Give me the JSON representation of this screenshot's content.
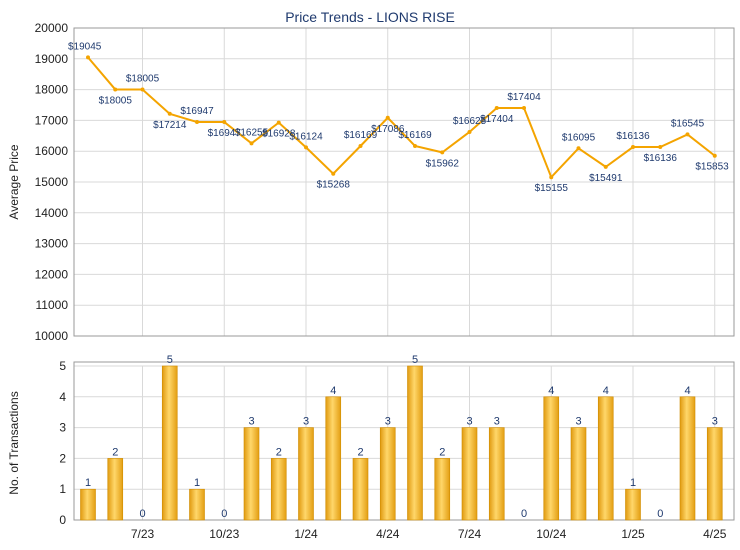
{
  "chart_data": [
    {
      "type": "line",
      "title": "Price Trends - LIONS RISE",
      "ylabel": "Average Price",
      "ylim": [
        10000,
        20000
      ],
      "yticks": [
        "10000",
        "11000",
        "12000",
        "13000",
        "14000",
        "15000",
        "16000",
        "17000",
        "18000",
        "19000",
        "20000"
      ],
      "color": "#f4a400",
      "points": [
        {
          "x": 0,
          "y": 19045,
          "label": "$19045"
        },
        {
          "x": 1,
          "y": 18005,
          "label": "$18005"
        },
        {
          "x": 2,
          "y": 18005,
          "label": "$18005"
        },
        {
          "x": 3,
          "y": 17214,
          "label": "$17214"
        },
        {
          "x": 4,
          "y": 16947,
          "label": "$16947"
        },
        {
          "x": 5,
          "y": 16947,
          "label": "$16947"
        },
        {
          "x": 6,
          "y": 16255,
          "label": "$16255"
        },
        {
          "x": 7,
          "y": 16928,
          "label": "$16928"
        },
        {
          "x": 8,
          "y": 16124,
          "label": "$16124"
        },
        {
          "x": 9,
          "y": 15268,
          "label": "$15268"
        },
        {
          "x": 10,
          "y": 16169,
          "label": "$16169"
        },
        {
          "x": 11,
          "y": 17086,
          "label": "$17086"
        },
        {
          "x": 12,
          "y": 16169,
          "label": "$16169"
        },
        {
          "x": 13,
          "y": 15962,
          "label": "$15962"
        },
        {
          "x": 14,
          "y": 16625,
          "label": "$16625"
        },
        {
          "x": 15,
          "y": 17404,
          "label": "$17404"
        },
        {
          "x": 16,
          "y": 17404,
          "label": "$17404"
        },
        {
          "x": 17,
          "y": 15155,
          "label": "$15155"
        },
        {
          "x": 18,
          "y": 16095,
          "label": "$16095"
        },
        {
          "x": 19,
          "y": 15491,
          "label": "$15491"
        },
        {
          "x": 20,
          "y": 16136,
          "label": "$16136"
        },
        {
          "x": 21,
          "y": 16136,
          "label": "$16136"
        },
        {
          "x": 22,
          "y": 16545,
          "label": "$16545"
        },
        {
          "x": 23,
          "y": 15853,
          "label": "$15853"
        }
      ]
    },
    {
      "type": "bar",
      "ylabel": "No. of Transactions",
      "ylim": [
        0,
        5
      ],
      "yticks": [
        "0",
        "1",
        "2",
        "3",
        "4",
        "5"
      ],
      "xticks": [
        {
          "label": "7/23",
          "pos": 2
        },
        {
          "label": "10/23",
          "pos": 5
        },
        {
          "label": "1/24",
          "pos": 8
        },
        {
          "label": "4/24",
          "pos": 11
        },
        {
          "label": "7/24",
          "pos": 14
        },
        {
          "label": "10/24",
          "pos": 17
        },
        {
          "label": "1/25",
          "pos": 20
        },
        {
          "label": "4/25",
          "pos": 23
        }
      ],
      "values": [
        1,
        2,
        0,
        5,
        1,
        0,
        3,
        2,
        3,
        4,
        2,
        3,
        5,
        2,
        3,
        3,
        0,
        4,
        3,
        4,
        1,
        0,
        4,
        3
      ],
      "color": "#f2b22a"
    }
  ]
}
